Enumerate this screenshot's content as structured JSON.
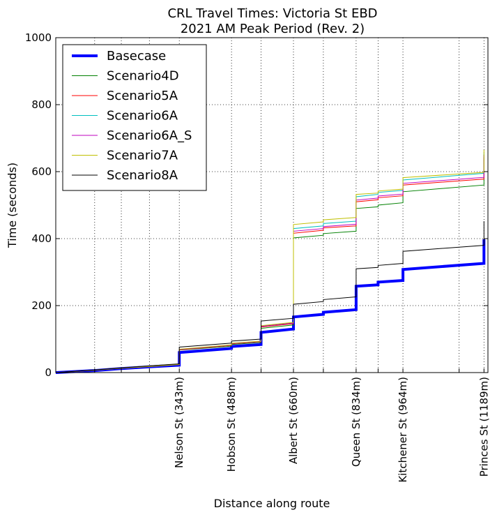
{
  "chart_data": {
    "type": "line",
    "title": "CRL Travel Times: Victoria St EBD",
    "subtitle": "2021 AM Peak Period (Rev. 2)",
    "xlabel": "Distance along route",
    "ylabel": "Time (seconds)",
    "xlim": [
      0,
      1200
    ],
    "ylim": [
      0,
      1000
    ],
    "yticks": [
      0,
      200,
      400,
      600,
      800,
      1000
    ],
    "grid": true,
    "legend_position": "top-left",
    "xtick_labels": [
      {
        "x": 343,
        "label": "Nelson St (343m)"
      },
      {
        "x": 488,
        "label": "Hobson St (488m)"
      },
      {
        "x": 660,
        "label": "Albert St (660m)"
      },
      {
        "x": 834,
        "label": "Queen St (834m)"
      },
      {
        "x": 964,
        "label": "Kitchener St (964m)"
      },
      {
        "x": 1189,
        "label": "Princes St (1189m)"
      }
    ],
    "x_gridlines": [
      108,
      182,
      260,
      343,
      488,
      570,
      660,
      743,
      834,
      895,
      964,
      1120,
      1189
    ],
    "series": [
      {
        "name": "Basecase",
        "color": "#0000ff",
        "width": 4,
        "points": [
          [
            0,
            0
          ],
          [
            108,
            6
          ],
          [
            182,
            12
          ],
          [
            260,
            17
          ],
          [
            343,
            22
          ],
          [
            343,
            60
          ],
          [
            488,
            72
          ],
          [
            488,
            78
          ],
          [
            570,
            84
          ],
          [
            570,
            120
          ],
          [
            660,
            130
          ],
          [
            660,
            166
          ],
          [
            743,
            174
          ],
          [
            743,
            180
          ],
          [
            834,
            188
          ],
          [
            834,
            258
          ],
          [
            895,
            262
          ],
          [
            895,
            270
          ],
          [
            964,
            275
          ],
          [
            964,
            308
          ],
          [
            1189,
            326
          ],
          [
            1189,
            398
          ]
        ]
      },
      {
        "name": "Scenario4D",
        "color": "#008000",
        "width": 1,
        "points": [
          [
            0,
            0
          ],
          [
            108,
            7
          ],
          [
            182,
            13
          ],
          [
            260,
            18
          ],
          [
            343,
            24
          ],
          [
            343,
            67
          ],
          [
            488,
            79
          ],
          [
            488,
            84
          ],
          [
            570,
            90
          ],
          [
            570,
            132
          ],
          [
            660,
            142
          ],
          [
            660,
            402
          ],
          [
            743,
            410
          ],
          [
            743,
            415
          ],
          [
            834,
            422
          ],
          [
            834,
            490
          ],
          [
            895,
            495
          ],
          [
            895,
            500
          ],
          [
            964,
            507
          ],
          [
            964,
            540
          ],
          [
            1189,
            560
          ],
          [
            1189,
            640
          ]
        ]
      },
      {
        "name": "Scenario5A",
        "color": "#ff0000",
        "width": 1,
        "points": [
          [
            0,
            0
          ],
          [
            108,
            7
          ],
          [
            182,
            13
          ],
          [
            260,
            18
          ],
          [
            343,
            24
          ],
          [
            343,
            68
          ],
          [
            488,
            81
          ],
          [
            488,
            86
          ],
          [
            570,
            92
          ],
          [
            570,
            136
          ],
          [
            660,
            146
          ],
          [
            660,
            416
          ],
          [
            743,
            425
          ],
          [
            743,
            432
          ],
          [
            834,
            438
          ],
          [
            834,
            510
          ],
          [
            895,
            516
          ],
          [
            895,
            522
          ],
          [
            964,
            528
          ],
          [
            964,
            560
          ],
          [
            1189,
            578
          ],
          [
            1189,
            645
          ]
        ]
      },
      {
        "name": "Scenario6A",
        "color": "#00bfbf",
        "width": 1,
        "points": [
          [
            0,
            0
          ],
          [
            108,
            7
          ],
          [
            182,
            13
          ],
          [
            260,
            18
          ],
          [
            343,
            24
          ],
          [
            343,
            69
          ],
          [
            488,
            82
          ],
          [
            488,
            87
          ],
          [
            570,
            93
          ],
          [
            570,
            138
          ],
          [
            660,
            148
          ],
          [
            660,
            430
          ],
          [
            743,
            438
          ],
          [
            743,
            445
          ],
          [
            834,
            452
          ],
          [
            834,
            525
          ],
          [
            895,
            532
          ],
          [
            895,
            538
          ],
          [
            964,
            544
          ],
          [
            964,
            575
          ],
          [
            1189,
            595
          ],
          [
            1189,
            655
          ]
        ]
      },
      {
        "name": "Scenario6A_S",
        "color": "#bf00bf",
        "width": 1,
        "points": [
          [
            0,
            0
          ],
          [
            108,
            7
          ],
          [
            182,
            13
          ],
          [
            260,
            18
          ],
          [
            343,
            24
          ],
          [
            343,
            69
          ],
          [
            488,
            82
          ],
          [
            488,
            87
          ],
          [
            570,
            93
          ],
          [
            570,
            138
          ],
          [
            660,
            148
          ],
          [
            660,
            422
          ],
          [
            743,
            430
          ],
          [
            743,
            436
          ],
          [
            834,
            443
          ],
          [
            834,
            515
          ],
          [
            895,
            521
          ],
          [
            895,
            527
          ],
          [
            964,
            533
          ],
          [
            964,
            565
          ],
          [
            1189,
            583
          ],
          [
            1189,
            650
          ]
        ]
      },
      {
        "name": "Scenario7A",
        "color": "#bfbf00",
        "width": 1,
        "points": [
          [
            0,
            0
          ],
          [
            108,
            7
          ],
          [
            182,
            13
          ],
          [
            260,
            18
          ],
          [
            343,
            24
          ],
          [
            343,
            70
          ],
          [
            488,
            83
          ],
          [
            488,
            88
          ],
          [
            570,
            94
          ],
          [
            570,
            140
          ],
          [
            660,
            150
          ],
          [
            660,
            442
          ],
          [
            743,
            450
          ],
          [
            743,
            456
          ],
          [
            834,
            463
          ],
          [
            834,
            532
          ],
          [
            895,
            536
          ],
          [
            895,
            542
          ],
          [
            964,
            548
          ],
          [
            964,
            582
          ],
          [
            1189,
            598
          ],
          [
            1189,
            665
          ]
        ]
      },
      {
        "name": "Scenario8A",
        "color": "#000000",
        "width": 1,
        "points": [
          [
            0,
            0
          ],
          [
            108,
            8
          ],
          [
            182,
            14
          ],
          [
            260,
            20
          ],
          [
            343,
            26
          ],
          [
            343,
            76
          ],
          [
            488,
            88
          ],
          [
            488,
            94
          ],
          [
            570,
            100
          ],
          [
            570,
            154
          ],
          [
            660,
            162
          ],
          [
            660,
            204
          ],
          [
            743,
            212
          ],
          [
            743,
            218
          ],
          [
            834,
            226
          ],
          [
            834,
            310
          ],
          [
            895,
            314
          ],
          [
            895,
            320
          ],
          [
            964,
            326
          ],
          [
            964,
            362
          ],
          [
            1189,
            380
          ],
          [
            1189,
            452
          ]
        ]
      }
    ]
  }
}
